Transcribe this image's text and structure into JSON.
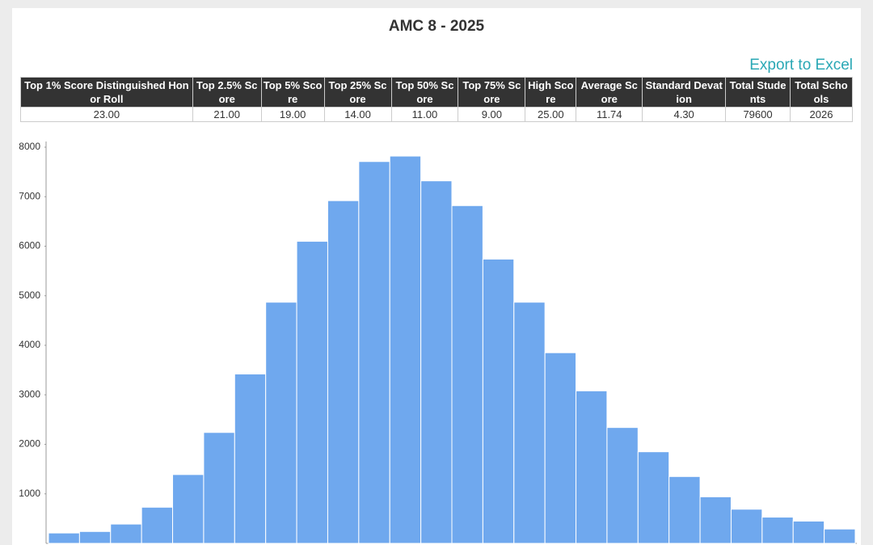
{
  "header": {
    "title": "AMC 8 - 2025",
    "export": "Export to Excel"
  },
  "table": {
    "headers": [
      "Top 1% Score Distinguished Honor Roll",
      "Top 2.5% Score",
      "Top 5% Score",
      "Top 25% Score",
      "Top 50% Score",
      "Top 75% Score",
      "High Score",
      "Average Score",
      "Standard Devation",
      "Total Students",
      "Total Schools"
    ],
    "rows": [
      [
        "23.00",
        "21.00",
        "19.00",
        "14.00",
        "11.00",
        "9.00",
        "25.00",
        "11.74",
        "4.30",
        "79600",
        "2026"
      ]
    ]
  },
  "chart_data": {
    "type": "bar",
    "color": "#6fa8ee",
    "values": [
      210,
      240,
      390,
      730,
      1390,
      2240,
      3420,
      4870,
      6100,
      6920,
      7710,
      7820,
      7320,
      6820,
      5740,
      4870,
      3850,
      3080,
      2340,
      1850,
      1350,
      940,
      690,
      530,
      450,
      290
    ],
    "ylim": [
      0,
      8000
    ],
    "yticks": [
      1000,
      2000,
      3000,
      4000,
      5000,
      6000,
      7000,
      8000
    ],
    "grid": false
  }
}
